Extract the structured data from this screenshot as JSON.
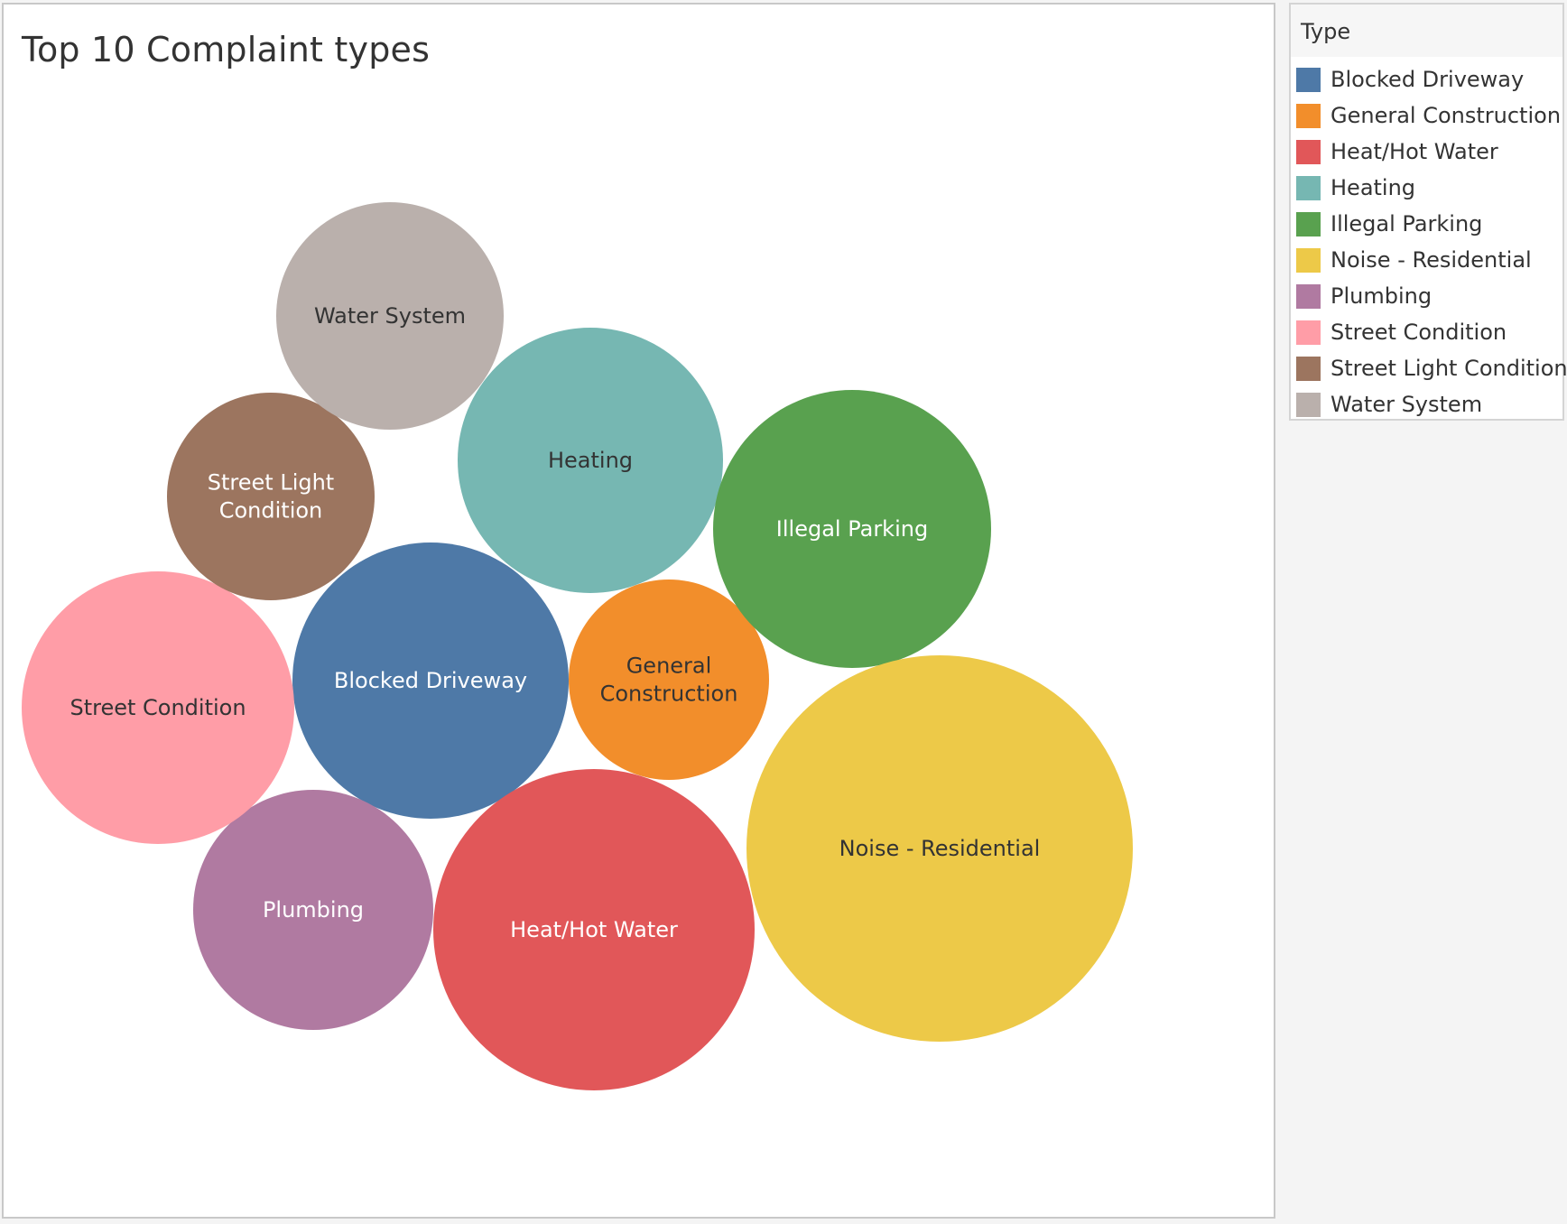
{
  "chart_data": {
    "type": "bubble",
    "title": "Top 10 Complaint types",
    "legend_title": "Type",
    "legend_position": "right",
    "categories": [
      "Blocked Driveway",
      "General Construction",
      "Heat/Hot Water",
      "Heating",
      "Illegal Parking",
      "Noise - Residential",
      "Plumbing",
      "Street Condition",
      "Street Light Condition",
      "Water System"
    ],
    "series": [
      {
        "name": "Blocked Driveway",
        "label_lines": [
          "Blocked Driveway"
        ],
        "color": "#4e79a7",
        "text_color": "#ffffff"
      },
      {
        "name": "General Construction",
        "label_lines": [
          "General",
          "Construction"
        ],
        "color": "#f28e2b",
        "text_color": "#333333"
      },
      {
        "name": "Heat/Hot Water",
        "label_lines": [
          "Heat/Hot Water"
        ],
        "color": "#e15759",
        "text_color": "#ffffff"
      },
      {
        "name": "Heating",
        "label_lines": [
          "Heating"
        ],
        "color": "#76b7b2",
        "text_color": "#333333"
      },
      {
        "name": "Illegal Parking",
        "label_lines": [
          "Illegal Parking"
        ],
        "color": "#59a14f",
        "text_color": "#ffffff"
      },
      {
        "name": "Noise - Residential",
        "label_lines": [
          "Noise - Residential"
        ],
        "color": "#edc948",
        "text_color": "#333333"
      },
      {
        "name": "Plumbing",
        "label_lines": [
          "Plumbing"
        ],
        "color": "#b07aa1",
        "text_color": "#ffffff"
      },
      {
        "name": "Street Condition",
        "label_lines": [
          "Street Condition"
        ],
        "color": "#ff9da7",
        "text_color": "#333333"
      },
      {
        "name": "Street Light Condition",
        "label_lines": [
          "Street Light",
          "Condition"
        ],
        "color": "#9c755f",
        "text_color": "#ffffff"
      },
      {
        "name": "Water System",
        "label_lines": [
          "Water System"
        ],
        "color": "#bab0ac",
        "text_color": "#333333"
      }
    ],
    "size_measure_visible": false
  }
}
